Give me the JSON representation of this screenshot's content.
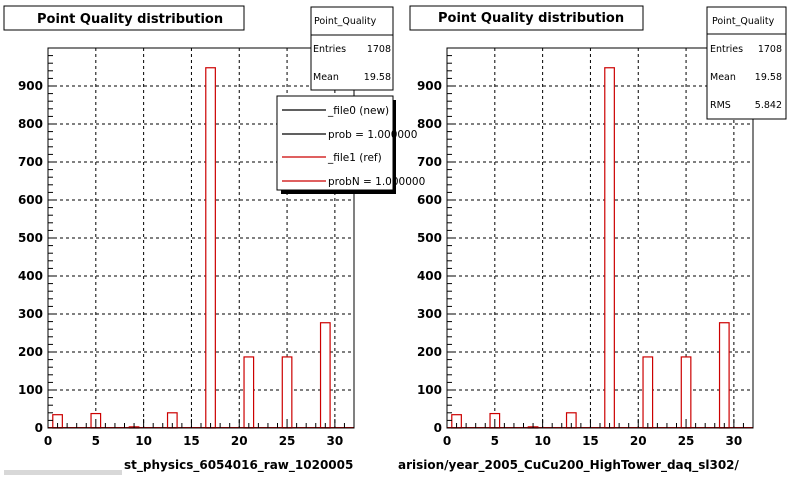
{
  "panels": [
    {
      "title": "Point Quality distribution",
      "stats": {
        "name": "Point_Quality",
        "entries_label": "Entries",
        "entries": "1708",
        "mean_label": "Mean",
        "mean": "19.58"
      },
      "legend": [
        {
          "label": "_file0 (new)",
          "color": "#000000"
        },
        {
          "label": "prob = 1.000000",
          "color": "#000000"
        },
        {
          "label": "_file1 (ref)",
          "color": "#cc0000"
        },
        {
          "label": "probN = 1.000000",
          "color": "#cc0000"
        }
      ],
      "footer": "st_physics_6054016_raw_1020005"
    },
    {
      "title": "Point Quality distribution",
      "stats": {
        "name": "Point_Quality",
        "entries_label": "Entries",
        "entries": "1708",
        "mean_label": "Mean",
        "mean": "19.58",
        "rms_label": "RMS",
        "rms": "5.842"
      },
      "footer": "arision/year_2005_CuCu200_HighTower_daq_sl302/"
    }
  ],
  "chart_data": [
    {
      "type": "bar",
      "title": "Point Quality distribution",
      "xlim": [
        0,
        32
      ],
      "ylim": [
        0,
        1000
      ],
      "x_ticks": [
        0,
        5,
        10,
        15,
        20,
        25,
        30
      ],
      "y_ticks": [
        0,
        100,
        200,
        300,
        400,
        500,
        600,
        700,
        800,
        900
      ],
      "grid": true,
      "bin_width": 1,
      "bins": [
        {
          "x": 1,
          "value": 35
        },
        {
          "x": 5,
          "value": 38
        },
        {
          "x": 9,
          "value": 3
        },
        {
          "x": 13,
          "value": 40
        },
        {
          "x": 17,
          "value": 948
        },
        {
          "x": 21,
          "value": 187
        },
        {
          "x": 25,
          "value": 187
        },
        {
          "x": 29,
          "value": 277
        }
      ],
      "series_color": "#cc0000"
    },
    {
      "type": "bar",
      "title": "Point Quality distribution",
      "xlim": [
        0,
        32
      ],
      "ylim": [
        0,
        1000
      ],
      "x_ticks": [
        0,
        5,
        10,
        15,
        20,
        25,
        30
      ],
      "y_ticks": [
        0,
        100,
        200,
        300,
        400,
        500,
        600,
        700,
        800,
        900
      ],
      "grid": true,
      "bin_width": 1,
      "bins": [
        {
          "x": 1,
          "value": 35
        },
        {
          "x": 5,
          "value": 38
        },
        {
          "x": 9,
          "value": 3
        },
        {
          "x": 13,
          "value": 40
        },
        {
          "x": 17,
          "value": 948
        },
        {
          "x": 21,
          "value": 187
        },
        {
          "x": 25,
          "value": 187
        },
        {
          "x": 29,
          "value": 277
        }
      ],
      "series_color": "#cc0000"
    }
  ]
}
